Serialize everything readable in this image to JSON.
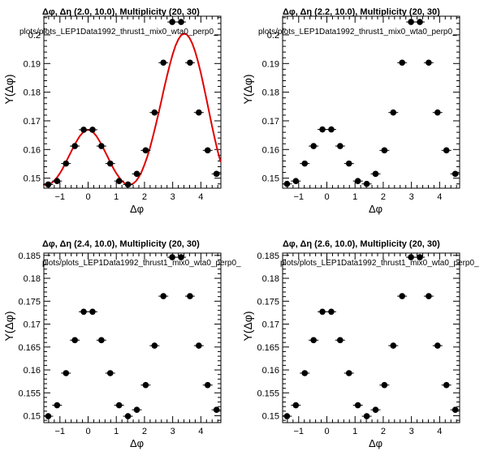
{
  "chart_data": [
    {
      "type": "scatter",
      "title": "Δφ, Δη (2.0, 10.0), Multiplicity (20, 30)",
      "subtitle": "plots/plots_LEP1Data1992_thrust1_mix0_wta0_perp0_",
      "xlabel": "Δφ",
      "ylabel": "Y(Δφ)",
      "xlim": [
        -1.57,
        4.71
      ],
      "ylim": [
        0.1465,
        0.2065
      ],
      "xticks": [
        "−1",
        "0",
        "1",
        "2",
        "3",
        "4"
      ],
      "yticks": [
        "0.15",
        "0.16",
        "0.17",
        "0.18",
        "0.19",
        "0.2"
      ],
      "series": [
        {
          "kind": "points",
          "color": "#000000",
          "x": [
            -1.414,
            -1.1,
            -0.785,
            -0.471,
            -0.157,
            0.157,
            0.471,
            0.785,
            1.1,
            1.414,
            1.728,
            2.042,
            2.356,
            2.67,
            2.985,
            3.299,
            3.613,
            3.927,
            4.241,
            4.555
          ],
          "y": [
            0.1478,
            0.149,
            0.1551,
            0.1612,
            0.1669,
            0.1669,
            0.1612,
            0.1551,
            0.149,
            0.1478,
            0.1515,
            0.1597,
            0.1729,
            0.1903,
            0.2045,
            0.2045,
            0.1903,
            0.1729,
            0.1597,
            0.1515
          ]
        },
        {
          "kind": "fit-curve",
          "color": "#e00000",
          "x": [
            -1.6,
            -1.5,
            -1.4,
            -1.3,
            -1.2,
            -1.1,
            -1.0,
            -0.9,
            -0.8,
            -0.7,
            -0.6,
            -0.5,
            -0.4,
            -0.3,
            -0.2,
            -0.1,
            0.0,
            0.1,
            0.2,
            0.3,
            0.4,
            0.5,
            0.6,
            0.7,
            0.8,
            0.9,
            1.0,
            1.1,
            1.2,
            1.3,
            1.4,
            1.5,
            1.6,
            1.7,
            1.8,
            1.9,
            2.0,
            2.1,
            2.2,
            2.3,
            2.4,
            2.5,
            2.6,
            2.7,
            2.8,
            2.9,
            3.0,
            3.1,
            3.2,
            3.3,
            3.4,
            3.5,
            3.6,
            3.7,
            3.8,
            3.9,
            4.0,
            4.1,
            4.2,
            4.3,
            4.4,
            4.5,
            4.6,
            4.7
          ],
          "y": [
            0.1477,
            0.1477,
            0.1478,
            0.1483,
            0.1491,
            0.1503,
            0.1517,
            0.1534,
            0.1553,
            0.1573,
            0.1593,
            0.1612,
            0.163,
            0.1646,
            0.1658,
            0.1666,
            0.1669,
            0.1666,
            0.1658,
            0.1646,
            0.163,
            0.1612,
            0.1593,
            0.1573,
            0.1553,
            0.1534,
            0.1517,
            0.1503,
            0.149,
            0.1482,
            0.1477,
            0.1477,
            0.1481,
            0.149,
            0.1504,
            0.1523,
            0.1547,
            0.1575,
            0.1608,
            0.1645,
            0.1685,
            0.1727,
            0.1771,
            0.1815,
            0.1857,
            0.1897,
            0.1932,
            0.1962,
            0.1984,
            0.1999,
            0.2004,
            0.2001,
            0.1989,
            0.1969,
            0.1941,
            0.1906,
            0.1866,
            0.1822,
            0.1775,
            0.1727,
            0.168,
            0.1635,
            0.1593,
            0.1556
          ]
        }
      ]
    },
    {
      "type": "scatter",
      "title": "Δφ, Δη (2.2, 10.0), Multiplicity (20, 30)",
      "subtitle": "plots/plots_LEP1Data1992_thrust1_mix0_wta0_perp0_",
      "xlabel": "Δφ",
      "ylabel": "Y(Δφ)",
      "xlim": [
        -1.57,
        4.71
      ],
      "ylim": [
        0.1465,
        0.2065
      ],
      "xticks": [
        "−1",
        "0",
        "1",
        "2",
        "3",
        "4"
      ],
      "yticks": [
        "0.15",
        "0.16",
        "0.17",
        "0.18",
        "0.19",
        "0.2"
      ],
      "series": [
        {
          "kind": "points",
          "color": "#000000",
          "x": [
            -1.414,
            -1.1,
            -0.785,
            -0.471,
            -0.157,
            0.157,
            0.471,
            0.785,
            1.1,
            1.414,
            1.728,
            2.042,
            2.356,
            2.67,
            2.985,
            3.299,
            3.613,
            3.927,
            4.241,
            4.555
          ],
          "y": [
            0.148,
            0.149,
            0.1551,
            0.1612,
            0.167,
            0.167,
            0.1612,
            0.1551,
            0.149,
            0.148,
            0.1515,
            0.1597,
            0.1729,
            0.1903,
            0.2045,
            0.2045,
            0.1903,
            0.1729,
            0.1597,
            0.1515
          ]
        }
      ]
    },
    {
      "type": "scatter",
      "title": "Δφ, Δη (2.4, 10.0), Multiplicity (20, 30)",
      "subtitle": "plots/plots_LEP1Data1992_thrust1_mix0_wta0_perp0_",
      "xlabel": "Δφ",
      "ylabel": "Y(Δφ)",
      "xlim": [
        -1.57,
        4.71
      ],
      "ylim": [
        0.1485,
        0.1855
      ],
      "xticks": [
        "−1",
        "0",
        "1",
        "2",
        "3",
        "4"
      ],
      "yticks": [
        "0.15",
        "0.155",
        "0.16",
        "0.165",
        "0.17",
        "0.175",
        "0.18",
        "0.185"
      ],
      "series": [
        {
          "kind": "points",
          "color": "#000000",
          "x": [
            -1.414,
            -1.1,
            -0.785,
            -0.471,
            -0.157,
            0.157,
            0.471,
            0.785,
            1.1,
            1.414,
            1.728,
            2.042,
            2.356,
            2.67,
            2.985,
            3.299,
            3.613,
            3.927,
            4.241,
            4.555
          ],
          "y": [
            0.1499,
            0.1523,
            0.1593,
            0.1665,
            0.1727,
            0.1727,
            0.1665,
            0.1593,
            0.1523,
            0.1499,
            0.1513,
            0.1567,
            0.1653,
            0.1761,
            0.1846,
            0.1846,
            0.1761,
            0.1653,
            0.1567,
            0.1513
          ]
        }
      ]
    },
    {
      "type": "scatter",
      "title": "Δφ, Δη (2.6, 10.0), Multiplicity (20, 30)",
      "subtitle": "plots/plots_LEP1Data1992_thrust1_mix0_wta0_perp0_",
      "xlabel": "Δφ",
      "ylabel": "Y(Δφ)",
      "xlim": [
        -1.57,
        4.71
      ],
      "ylim": [
        0.1485,
        0.1855
      ],
      "xticks": [
        "−1",
        "0",
        "1",
        "2",
        "3",
        "4"
      ],
      "yticks": [
        "0.15",
        "0.155",
        "0.16",
        "0.165",
        "0.17",
        "0.175",
        "0.18",
        "0.185"
      ],
      "series": [
        {
          "kind": "points",
          "color": "#000000",
          "x": [
            -1.414,
            -1.1,
            -0.785,
            -0.471,
            -0.157,
            0.157,
            0.471,
            0.785,
            1.1,
            1.414,
            1.728,
            2.042,
            2.356,
            2.67,
            2.985,
            3.299,
            3.613,
            3.927,
            4.241,
            4.555
          ],
          "y": [
            0.1499,
            0.1523,
            0.1593,
            0.1665,
            0.1727,
            0.1727,
            0.1665,
            0.1593,
            0.1523,
            0.1499,
            0.1513,
            0.1567,
            0.1653,
            0.1761,
            0.1846,
            0.1846,
            0.1761,
            0.1653,
            0.1567,
            0.1513
          ]
        }
      ]
    }
  ]
}
